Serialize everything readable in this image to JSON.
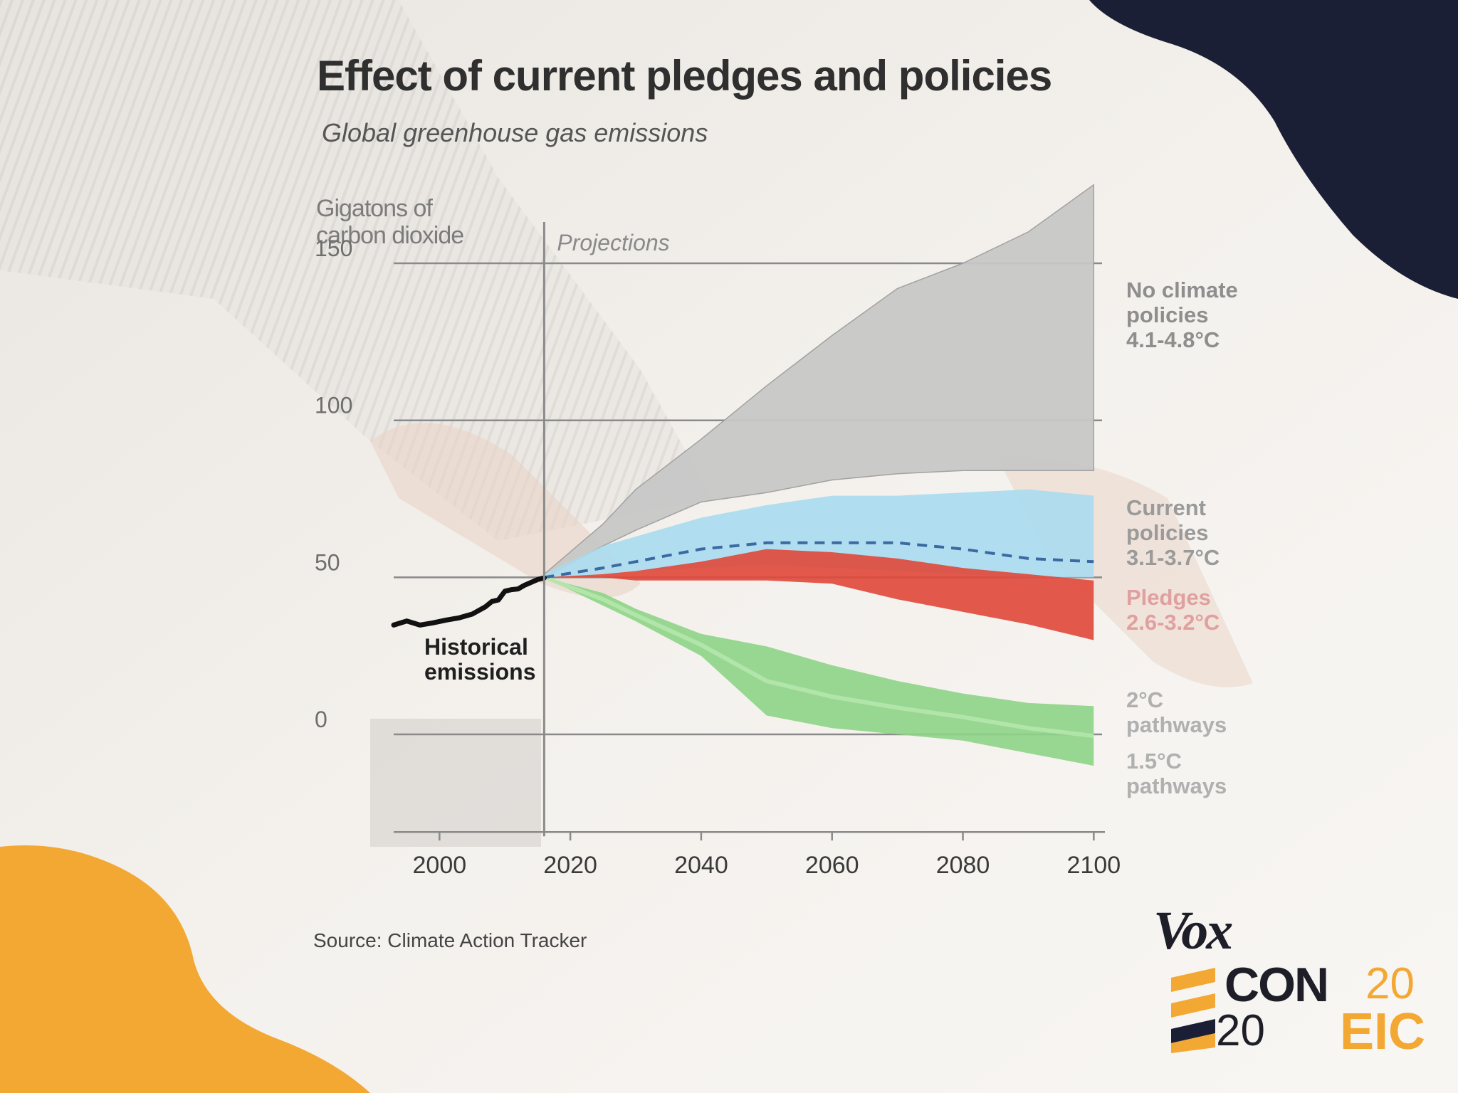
{
  "title": "Effect of current pledges and policies",
  "subtitle": "Global greenhouse gas emissions",
  "source": "Source: Climate Action Tracker",
  "colors": {
    "no_policy": "#c8c8c8",
    "current_policy": "#a9dcf0",
    "current_policy_dash": "#3a6aa0",
    "pledges": "#e0483a",
    "two_degree": "#8ed486",
    "historical": "#111111",
    "accent_orange": "#f2a833",
    "accent_navy": "#1b1f35"
  },
  "logo": {
    "vox": "Vox",
    "econ": "CON",
    "eic": "EIC",
    "year_top": "20",
    "year_bottom": "20"
  },
  "chart_data": {
    "type": "area",
    "ylabel": "Gigatons of carbon dioxide",
    "ylim": [
      -32,
      175
    ],
    "xlim": [
      1993,
      2100
    ],
    "x_ticks": [
      "2000",
      "2020",
      "2040",
      "2060",
      "2080",
      "2100"
    ],
    "x_tick_values": [
      2000,
      2020,
      2040,
      2060,
      2080,
      2100
    ],
    "y_ticks": [
      "150",
      "100",
      "50",
      "0"
    ],
    "y_tick_values": [
      150,
      100,
      50,
      0
    ],
    "grid": true,
    "projection_start": 2016,
    "annotations": [
      "Projections",
      "Historical emissions"
    ],
    "historical": {
      "name": "Historical emissions",
      "x": [
        1993,
        1995,
        1997,
        1999,
        2001,
        2003,
        2005,
        2007,
        2008,
        2009,
        2010,
        2011,
        2012,
        2013,
        2014,
        2015,
        2016
      ],
      "y": [
        34.8,
        36.1,
        34.8,
        35.5,
        36.4,
        37.1,
        38.3,
        40.6,
        42.3,
        42.8,
        45.6,
        46.1,
        46.3,
        47.5,
        48.4,
        49.3,
        49.8
      ]
    },
    "bands": [
      {
        "name": "No climate policies 4.1-4.8°C",
        "label_lines": [
          "No climate",
          "policies",
          "4.1-4.8°C"
        ],
        "x": [
          2016,
          2025,
          2030,
          2040,
          2050,
          2060,
          2070,
          2080,
          2090,
          2100
        ],
        "upper": [
          51,
          67,
          78,
          94,
          111,
          127,
          142,
          150,
          160,
          175
        ],
        "lower": [
          50,
          60,
          65,
          74,
          77,
          81,
          83,
          84,
          84,
          84
        ]
      },
      {
        "name": "Current policies 3.1-3.7°C",
        "label_lines": [
          "Current",
          "policies",
          "3.1-3.7°C"
        ],
        "x": [
          2016,
          2025,
          2030,
          2040,
          2050,
          2060,
          2070,
          2080,
          2090,
          2100
        ],
        "upper": [
          51,
          60,
          63,
          69,
          73,
          76,
          76,
          77,
          78,
          76
        ],
        "lower": [
          50,
          51,
          52,
          53,
          54,
          53,
          52,
          51,
          50,
          50
        ],
        "median": [
          50,
          53,
          55,
          59,
          61,
          61,
          61,
          59,
          56,
          55
        ]
      },
      {
        "name": "Pledges 2.6-3.2°C",
        "label_lines": [
          "Pledges",
          "2.6-3.2°C"
        ],
        "x": [
          2016,
          2025,
          2030,
          2040,
          2050,
          2060,
          2070,
          2080,
          2090,
          2100
        ],
        "upper": [
          50,
          51,
          52,
          55,
          59,
          58,
          56,
          53,
          51,
          49
        ],
        "lower": [
          50,
          50,
          49,
          49,
          49,
          48,
          43,
          39,
          35,
          30
        ]
      },
      {
        "name": "2°C pathways / 1.5°C pathways",
        "label_lines": [
          "2°C",
          "pathways",
          "1.5°C",
          "pathways"
        ],
        "x": [
          2016,
          2025,
          2030,
          2040,
          2050,
          2060,
          2070,
          2080,
          2090,
          2100
        ],
        "upper": [
          50,
          45,
          40,
          32,
          28,
          22,
          17,
          13,
          10,
          9
        ],
        "lower": [
          50,
          41,
          36,
          25,
          6,
          2,
          0,
          -2,
          -6,
          -10
        ]
      }
    ]
  }
}
